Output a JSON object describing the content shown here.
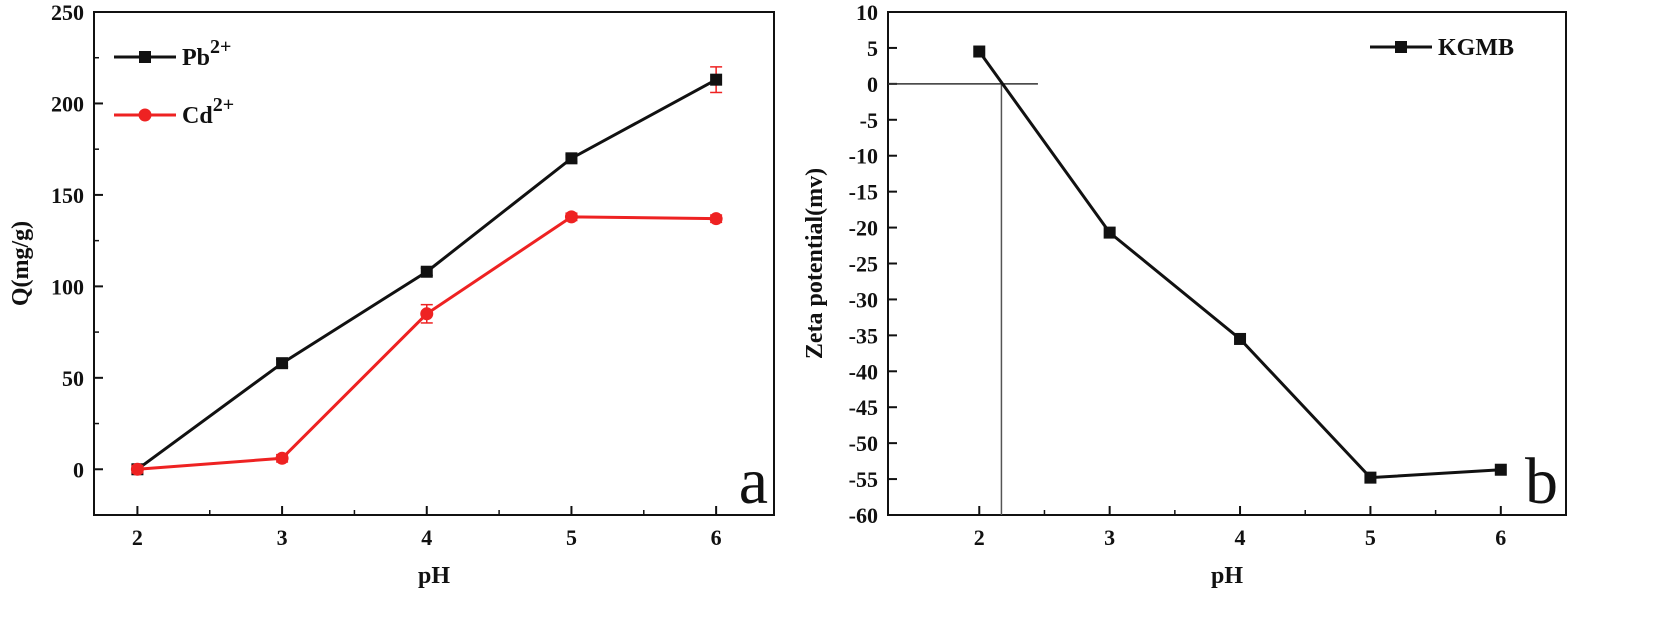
{
  "chart_data": [
    {
      "panel": "a",
      "type": "line",
      "title": "",
      "xlabel": "pH",
      "ylabel": "Q(mg/g)",
      "panel_label": "a",
      "x": [
        2,
        3,
        4,
        5,
        6
      ],
      "xlim": [
        1.7,
        6.4
      ],
      "ylim": [
        -25,
        250
      ],
      "xticks": [
        2,
        3,
        4,
        5,
        6
      ],
      "yticks": [
        0,
        50,
        100,
        150,
        200,
        250
      ],
      "grid": false,
      "legend_position": "top-left",
      "series": [
        {
          "name": "Pb",
          "name_superscript": "2+",
          "color": "#111111",
          "marker": "square",
          "values": [
            0,
            58,
            108,
            170,
            213
          ],
          "errors": [
            2,
            2,
            2,
            2,
            7
          ]
        },
        {
          "name": "Cd",
          "name_superscript": "2+",
          "color": "#ee2222",
          "marker": "circle",
          "values": [
            0,
            6,
            85,
            138,
            137
          ],
          "errors": [
            2,
            2,
            5,
            2,
            2
          ]
        }
      ]
    },
    {
      "panel": "b",
      "type": "line",
      "title": "",
      "xlabel": "pH",
      "ylabel": "Zeta potential(mv)",
      "panel_label": "b",
      "x": [
        2,
        3,
        4,
        5,
        6
      ],
      "xlim": [
        1.3,
        6.5
      ],
      "ylim": [
        -60,
        10
      ],
      "xticks": [
        2,
        3,
        4,
        5,
        6
      ],
      "yticks": [
        10,
        5,
        0,
        -5,
        -10,
        -15,
        -20,
        -25,
        -30,
        -35,
        -40,
        -45,
        -50,
        -55,
        -60
      ],
      "grid": false,
      "legend_position": "top-right",
      "reference_lines": {
        "horizontal_y": 0,
        "horizontal_x_range": [
          1.3,
          2.45
        ],
        "vertical_x": 2.17
      },
      "series": [
        {
          "name": "KGMB",
          "color": "#111111",
          "marker": "square",
          "values": [
            4.5,
            -20.7,
            -35.5,
            -54.8,
            -53.7
          ]
        }
      ]
    }
  ]
}
